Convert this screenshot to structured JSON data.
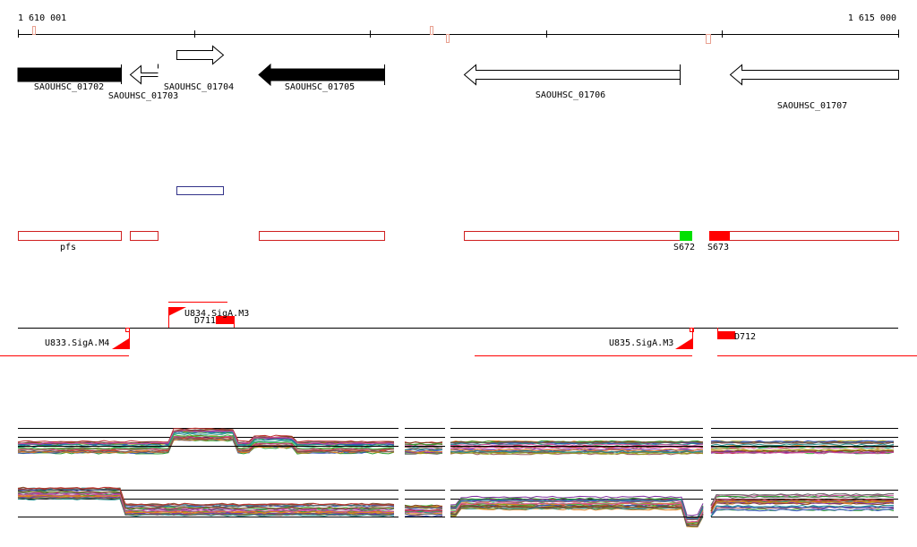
{
  "ruler": {
    "start": "1 610 001",
    "end": "1 615 000"
  },
  "genes": [
    {
      "label": "SAOUHSC_01702"
    },
    {
      "label": "SAOUHSC_01703"
    },
    {
      "label": "SAOUHSC_01704"
    },
    {
      "label": "SAOUHSC_01705"
    },
    {
      "label": "SAOUHSC_01706"
    },
    {
      "label": "SAOUHSC_01707"
    }
  ],
  "features": [
    {
      "label": "pfs"
    },
    {
      "label": "S672"
    },
    {
      "label": "S673"
    }
  ],
  "terminators": [
    {
      "label": "U834.SigA.M3"
    },
    {
      "label": "D711"
    },
    {
      "label": "U833.SigA.M4"
    },
    {
      "label": "U835.SigA.M3"
    },
    {
      "label": "D712"
    }
  ]
}
